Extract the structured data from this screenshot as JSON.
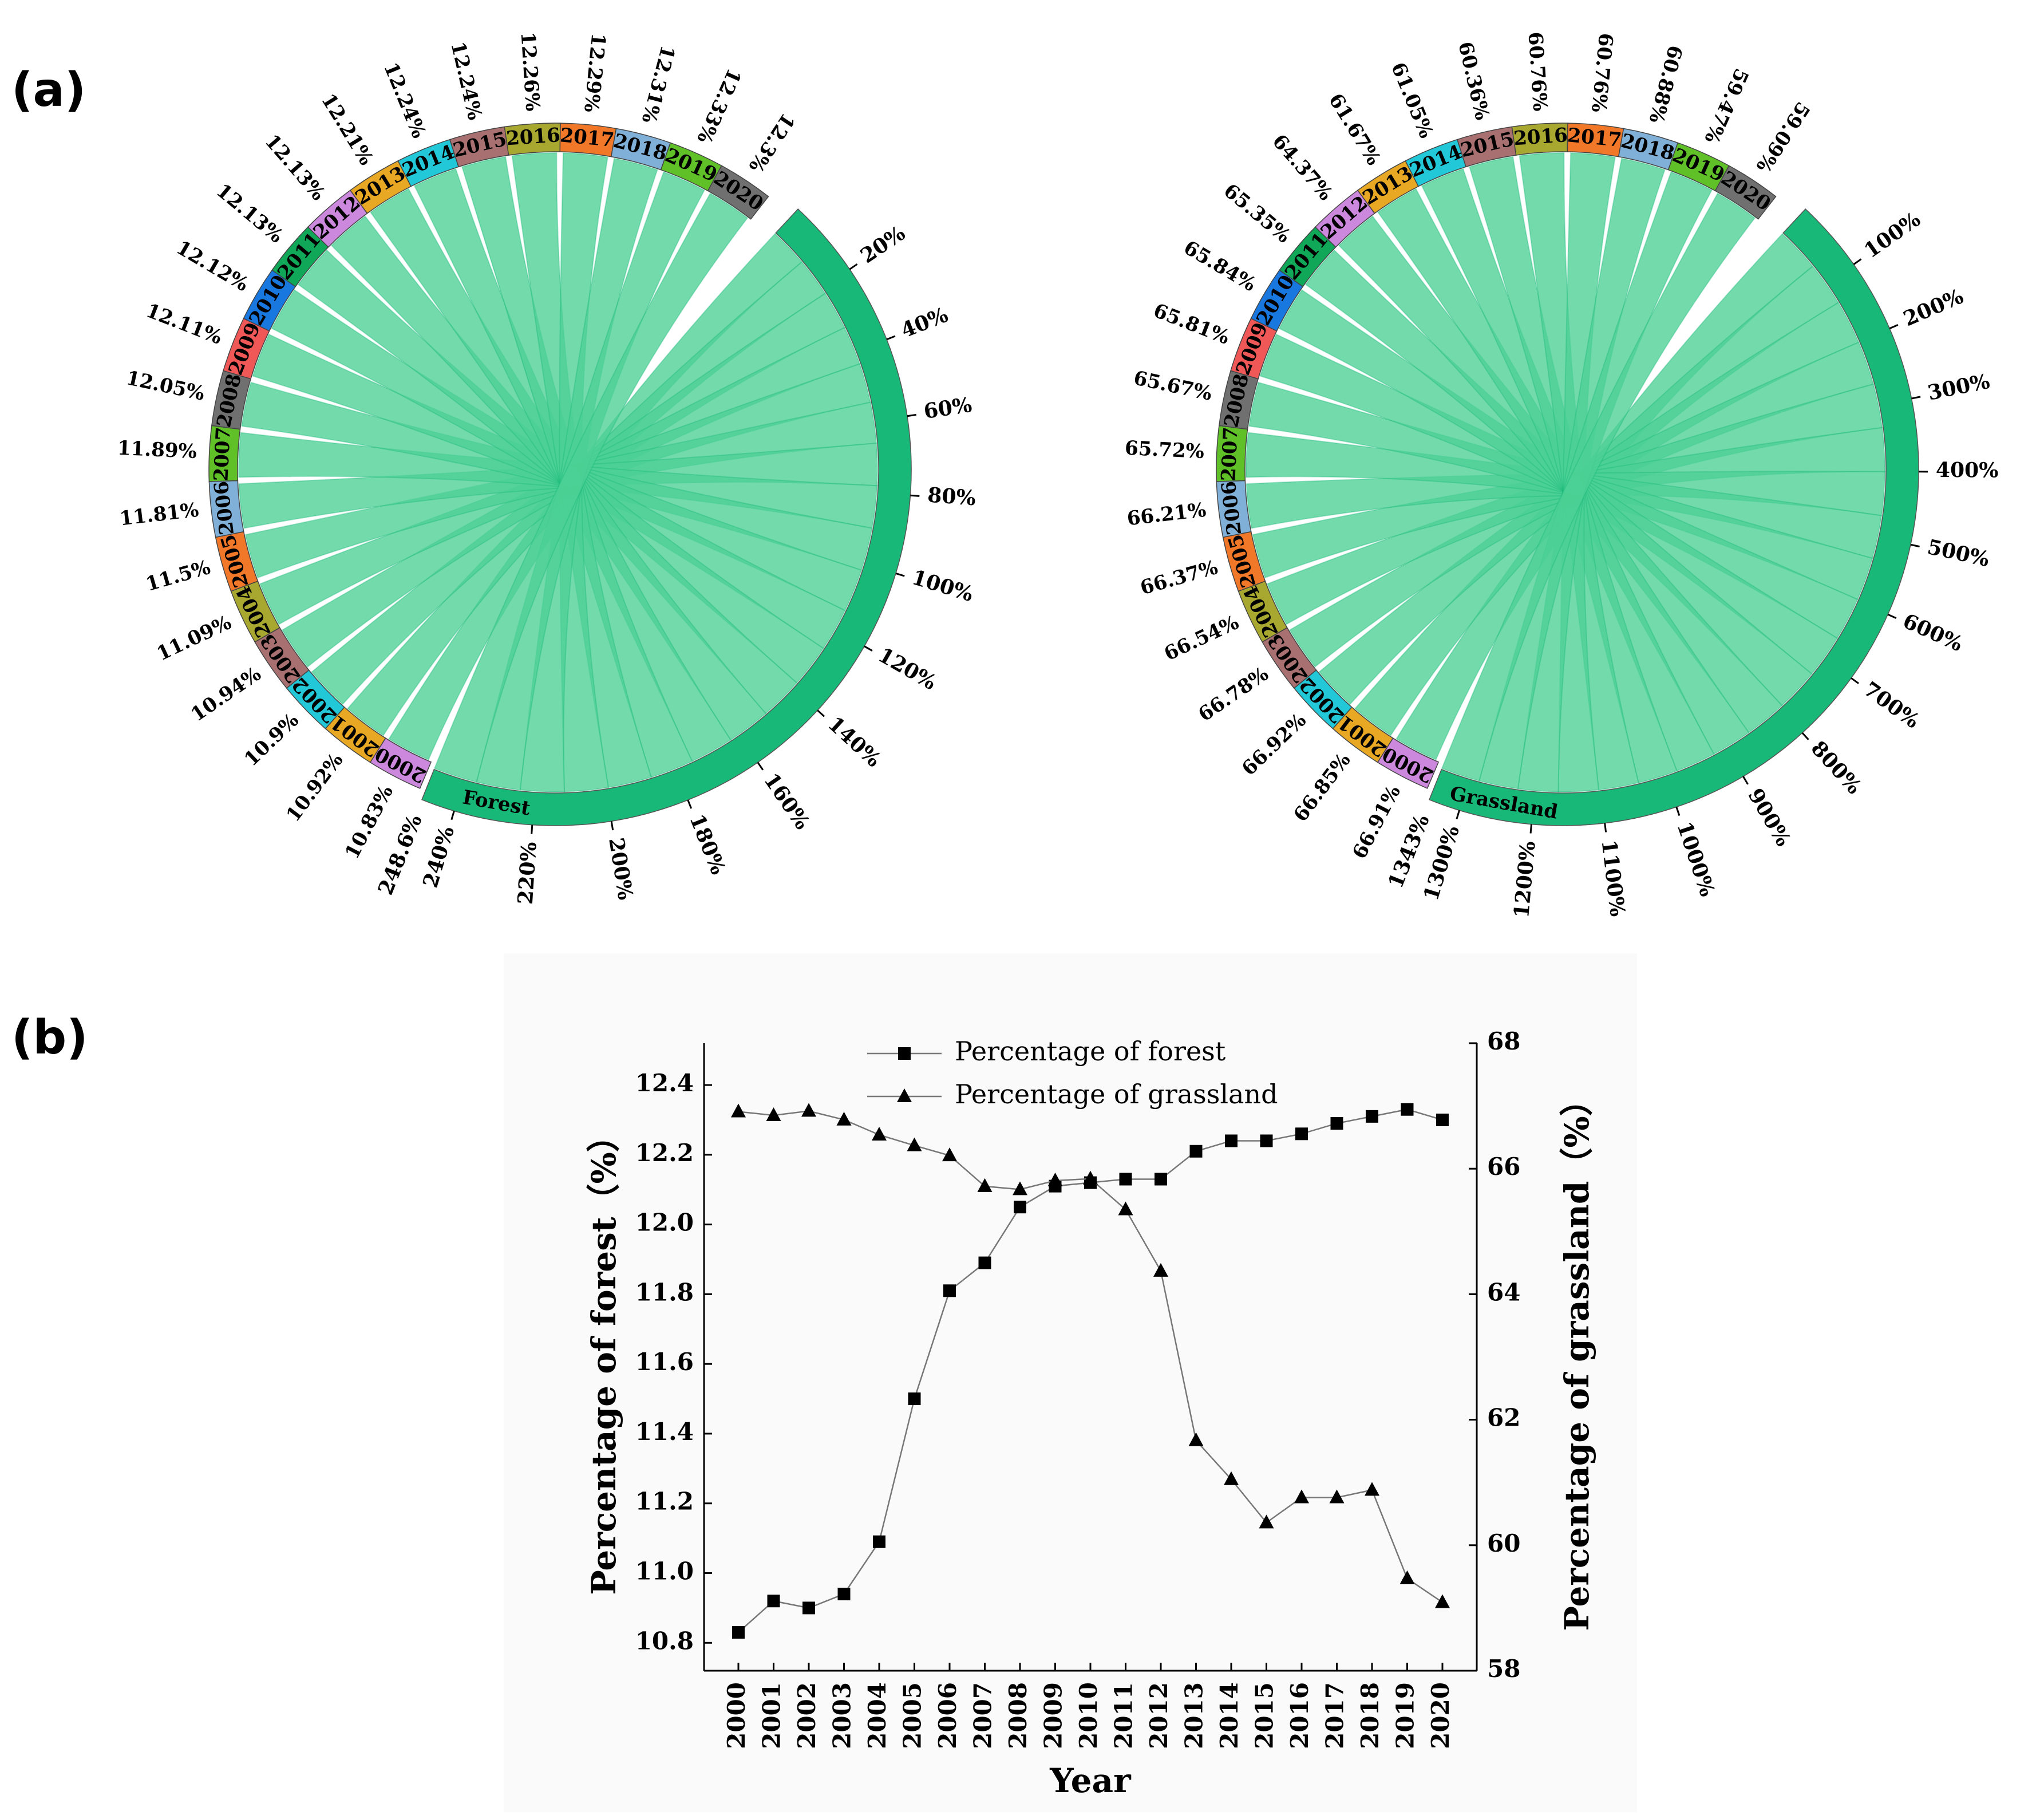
{
  "panels": {
    "a": "(a)",
    "b": "(b)"
  },
  "chart_data": [
    {
      "type": "chord",
      "panel": "(a)",
      "target_label": "Forest",
      "total_label": "248.6%",
      "scale_ticks": [
        "20%",
        "40%",
        "60%",
        "80%",
        "100%",
        "120%",
        "140%",
        "160%",
        "180%",
        "200%",
        "220%",
        "240%"
      ],
      "categories": [
        "2000",
        "2001",
        "2002",
        "2003",
        "2004",
        "2005",
        "2006",
        "2007",
        "2008",
        "2009",
        "2010",
        "2011",
        "2012",
        "2013",
        "2014",
        "2015",
        "2016",
        "2017",
        "2018",
        "2019",
        "2020"
      ],
      "labels": [
        "10.83%",
        "10.92%",
        "10.9%",
        "10.94%",
        "11.09%",
        "11.5%",
        "11.81%",
        "11.89%",
        "12.05%",
        "12.11%",
        "12.12%",
        "12.13%",
        "12.13%",
        "12.21%",
        "12.24%",
        "12.24%",
        "12.26%",
        "12.29%",
        "12.31%",
        "12.33%",
        "12.3%"
      ],
      "values": [
        10.83,
        10.92,
        10.9,
        10.94,
        11.09,
        11.5,
        11.81,
        11.89,
        12.05,
        12.11,
        12.12,
        12.13,
        12.13,
        12.21,
        12.24,
        12.24,
        12.26,
        12.29,
        12.31,
        12.33,
        12.3
      ],
      "colors": [
        "#cc88dd",
        "#e8a824",
        "#22c8d8",
        "#a87070",
        "#a8a830",
        "#f07828",
        "#80b0d8",
        "#60c028",
        "#707070",
        "#f05858",
        "#1878e0",
        "#10a858",
        "#cc88dd",
        "#e8a824",
        "#22c8d8",
        "#a87070",
        "#a8a830",
        "#f07828",
        "#80b0d8",
        "#60c028",
        "#707070"
      ],
      "band_color": "#18b878",
      "chord_color": "#4ccf95"
    },
    {
      "type": "chord",
      "panel": "(a)",
      "target_label": "Grassland",
      "total_label": "1343%",
      "scale_ticks": [
        "100%",
        "200%",
        "300%",
        "400%",
        "500%",
        "600%",
        "700%",
        "800%",
        "900%",
        "1000%",
        "1100%",
        "1200%",
        "1300%"
      ],
      "categories": [
        "2000",
        "2001",
        "2002",
        "2003",
        "2004",
        "2005",
        "2006",
        "2007",
        "2008",
        "2009",
        "2010",
        "2011",
        "2012",
        "2013",
        "2014",
        "2015",
        "2016",
        "2017",
        "2018",
        "2019",
        "2020"
      ],
      "labels": [
        "66.91%",
        "66.85%",
        "66.92%",
        "66.78%",
        "66.54%",
        "66.37%",
        "66.21%",
        "65.72%",
        "65.67%",
        "65.81%",
        "65.84%",
        "65.35%",
        "64.37%",
        "61.67%",
        "61.05%",
        "60.36%",
        "60.76%",
        "60.76%",
        "60.88%",
        "59.47%",
        "59.09%"
      ],
      "values": [
        66.91,
        66.85,
        66.92,
        66.78,
        66.54,
        66.37,
        66.21,
        65.72,
        65.67,
        65.81,
        65.84,
        65.35,
        64.37,
        61.67,
        61.05,
        60.36,
        60.76,
        60.76,
        60.88,
        59.47,
        59.09
      ],
      "colors": [
        "#cc88dd",
        "#e8a824",
        "#22c8d8",
        "#a87070",
        "#a8a830",
        "#f07828",
        "#80b0d8",
        "#60c028",
        "#707070",
        "#f05858",
        "#1878e0",
        "#10a858",
        "#cc88dd",
        "#e8a824",
        "#22c8d8",
        "#a87070",
        "#a8a830",
        "#f07828",
        "#80b0d8",
        "#60c028",
        "#707070"
      ],
      "band_color": "#18b878",
      "chord_color": "#4ccf95"
    },
    {
      "type": "line",
      "panel": "(b)",
      "xlabel": "Year",
      "ylabel": "Percentage of forest（%）",
      "ylabel_right": "Percentage of grassland（%）",
      "x": [
        "2000",
        "2001",
        "2002",
        "2003",
        "2004",
        "2005",
        "2006",
        "2007",
        "2008",
        "2009",
        "2010",
        "2011",
        "2012",
        "2013",
        "2014",
        "2015",
        "2016",
        "2017",
        "2018",
        "2019",
        "2020"
      ],
      "ylim": [
        10.72,
        12.52
      ],
      "yticks": [
        "10.8",
        "11.0",
        "11.2",
        "11.4",
        "11.6",
        "11.8",
        "12.0",
        "12.2",
        "12.4"
      ],
      "ylim_right": [
        58,
        68
      ],
      "yticks_right": [
        "58",
        "60",
        "62",
        "64",
        "66",
        "68"
      ],
      "series": [
        {
          "name": "Percentage of forest",
          "marker": "square",
          "axis": "left",
          "values": [
            10.83,
            10.92,
            10.9,
            10.94,
            11.09,
            11.5,
            11.81,
            11.89,
            12.05,
            12.11,
            12.12,
            12.13,
            12.13,
            12.21,
            12.24,
            12.24,
            12.26,
            12.29,
            12.31,
            12.33,
            12.3
          ]
        },
        {
          "name": "Percentage of grassland",
          "marker": "triangle",
          "axis": "right",
          "values": [
            66.91,
            66.85,
            66.92,
            66.78,
            66.54,
            66.37,
            66.21,
            65.72,
            65.67,
            65.81,
            65.84,
            65.35,
            64.37,
            61.67,
            61.05,
            60.36,
            60.76,
            60.76,
            60.88,
            59.47,
            59.09
          ]
        }
      ],
      "legend_position": "top-left",
      "grid": false
    }
  ]
}
